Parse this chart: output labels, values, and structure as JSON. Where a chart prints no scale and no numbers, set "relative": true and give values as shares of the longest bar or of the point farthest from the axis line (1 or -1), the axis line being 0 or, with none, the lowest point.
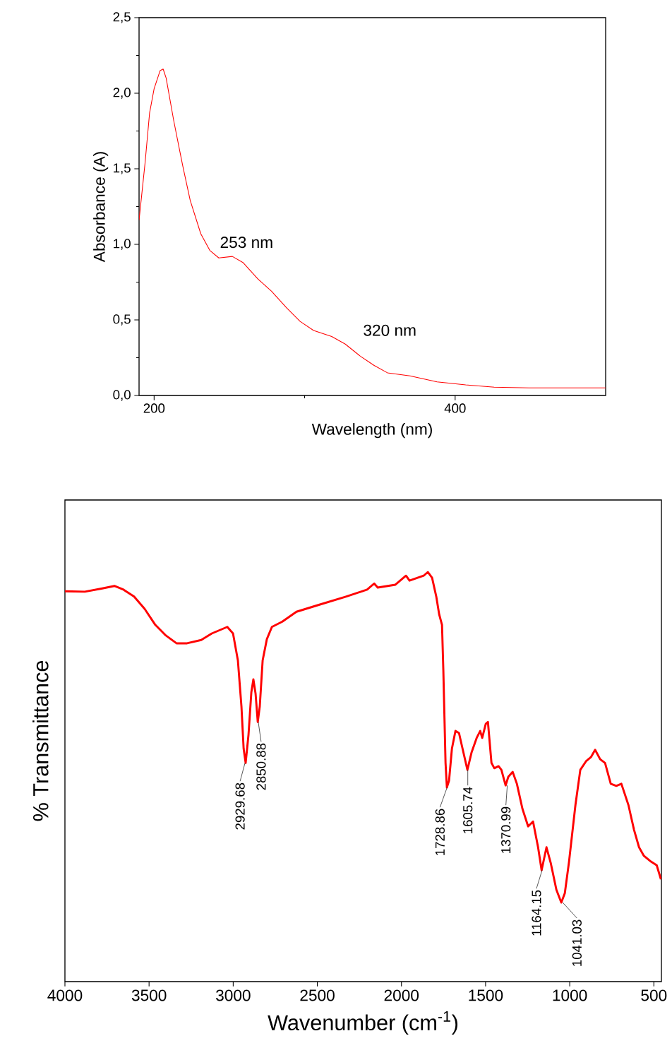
{
  "chart_data": [
    {
      "type": "line",
      "xlabel": "Wavelength (nm)",
      "ylabel": "Absorbance (A)",
      "color": "#ff0000",
      "x": [
        190,
        194,
        197,
        200,
        204,
        206,
        208,
        213,
        219,
        224,
        231,
        237,
        243,
        252,
        259,
        269,
        278,
        288,
        297,
        306,
        318,
        327,
        337,
        346,
        355,
        370,
        388,
        407,
        426,
        449,
        473,
        500
      ],
      "values": [
        1.16,
        1.54,
        1.87,
        2.03,
        2.15,
        2.16,
        2.1,
        1.82,
        1.52,
        1.29,
        1.07,
        0.96,
        0.91,
        0.92,
        0.88,
        0.77,
        0.69,
        0.58,
        0.49,
        0.43,
        0.39,
        0.34,
        0.26,
        0.2,
        0.15,
        0.13,
        0.09,
        0.07,
        0.055,
        0.05,
        0.05,
        0.05
      ],
      "xlim": [
        190,
        500
      ],
      "xticks": [
        200,
        {
          "value": 300,
          "label": null
        },
        400
      ],
      "ylim": [
        0,
        2.5
      ],
      "yticks": [
        {
          "value": 0,
          "label": "0,0"
        },
        {
          "value": 0.25,
          "label": null
        },
        {
          "value": 0.5,
          "label": "0,5"
        },
        {
          "value": 0.75,
          "label": null
        },
        {
          "value": 1,
          "label": "1,0"
        },
        {
          "value": 1.25,
          "label": null
        },
        {
          "value": 1.5,
          "label": "1,5"
        },
        {
          "value": 1.75,
          "label": null
        },
        {
          "value": 2,
          "label": "2,0"
        },
        {
          "value": 2.25,
          "label": null
        },
        {
          "value": 2.5,
          "label": "2,5"
        }
      ],
      "annotations": [
        {
          "text": "253 nm",
          "x": 253,
          "y": 0.92
        },
        {
          "text": "320 nm",
          "x": 320,
          "y": 0.38
        }
      ]
    },
    {
      "type": "line",
      "xlabel": "Wavenumber (cm$^{-1}$)",
      "ylabel": "% Transmittance",
      "color": "#ff0000",
      "relative": true,
      "x": [
        4000,
        3882,
        3778,
        3706,
        3652,
        3589,
        3526,
        3463,
        3400,
        3337,
        3274,
        3190,
        3127,
        3035,
        3001,
        2972,
        2951,
        2938,
        2926,
        2909,
        2892,
        2880,
        2867,
        2854,
        2842,
        2825,
        2800,
        2770,
        2708,
        2624,
        2498,
        2330,
        2204,
        2162,
        2141,
        2036,
        1973,
        1952,
        1868,
        1843,
        1818,
        1793,
        1776,
        1759,
        1751,
        1738,
        1730,
        1717,
        1700,
        1679,
        1658,
        1637,
        1608,
        1583,
        1553,
        1532,
        1520,
        1499,
        1486,
        1465,
        1448,
        1423,
        1406,
        1381,
        1365,
        1339,
        1314,
        1281,
        1247,
        1218,
        1188,
        1167,
        1138,
        1113,
        1079,
        1050,
        1029,
        1004,
        966,
        937,
        903,
        874,
        849,
        819,
        790,
        756,
        723,
        693,
        651,
        618,
        588,
        559,
        517,
        483,
        458
      ],
      "values": [
        0.953,
        0.952,
        0.96,
        0.966,
        0.957,
        0.94,
        0.91,
        0.871,
        0.845,
        0.826,
        0.826,
        0.834,
        0.85,
        0.866,
        0.85,
        0.784,
        0.672,
        0.569,
        0.534,
        0.603,
        0.707,
        0.738,
        0.703,
        0.634,
        0.672,
        0.784,
        0.836,
        0.866,
        0.879,
        0.903,
        0.919,
        0.94,
        0.957,
        0.972,
        0.962,
        0.969,
        0.991,
        0.979,
        0.991,
        1.0,
        0.986,
        0.94,
        0.897,
        0.871,
        0.759,
        0.534,
        0.474,
        0.491,
        0.569,
        0.612,
        0.607,
        0.569,
        0.517,
        0.56,
        0.595,
        0.612,
        0.595,
        0.629,
        0.634,
        0.534,
        0.521,
        0.526,
        0.517,
        0.479,
        0.5,
        0.512,
        0.483,
        0.422,
        0.379,
        0.391,
        0.328,
        0.272,
        0.328,
        0.29,
        0.224,
        0.193,
        0.216,
        0.293,
        0.431,
        0.517,
        0.538,
        0.548,
        0.566,
        0.543,
        0.534,
        0.483,
        0.478,
        0.483,
        0.431,
        0.371,
        0.328,
        0.307,
        0.293,
        0.284,
        0.25
      ],
      "xlim": [
        4000,
        455
      ],
      "xticks": [
        4000,
        3500,
        3000,
        2500,
        2000,
        1500,
        1000,
        500
      ],
      "annotations": [
        {
          "text": "2929.68",
          "x": 2929.68,
          "y": 0.534
        },
        {
          "text": "2850.88",
          "x": 2850.88,
          "y": 0.634
        },
        {
          "text": "1728.86",
          "x": 1728.86,
          "y": 0.474
        },
        {
          "text": "1605.74",
          "x": 1605.74,
          "y": 0.517
        },
        {
          "text": "1370.99",
          "x": 1370.99,
          "y": 0.479
        },
        {
          "text": "1164.15",
          "x": 1164.15,
          "y": 0.272
        },
        {
          "text": "1041.03",
          "x": 1041.03,
          "y": 0.193
        }
      ]
    }
  ]
}
